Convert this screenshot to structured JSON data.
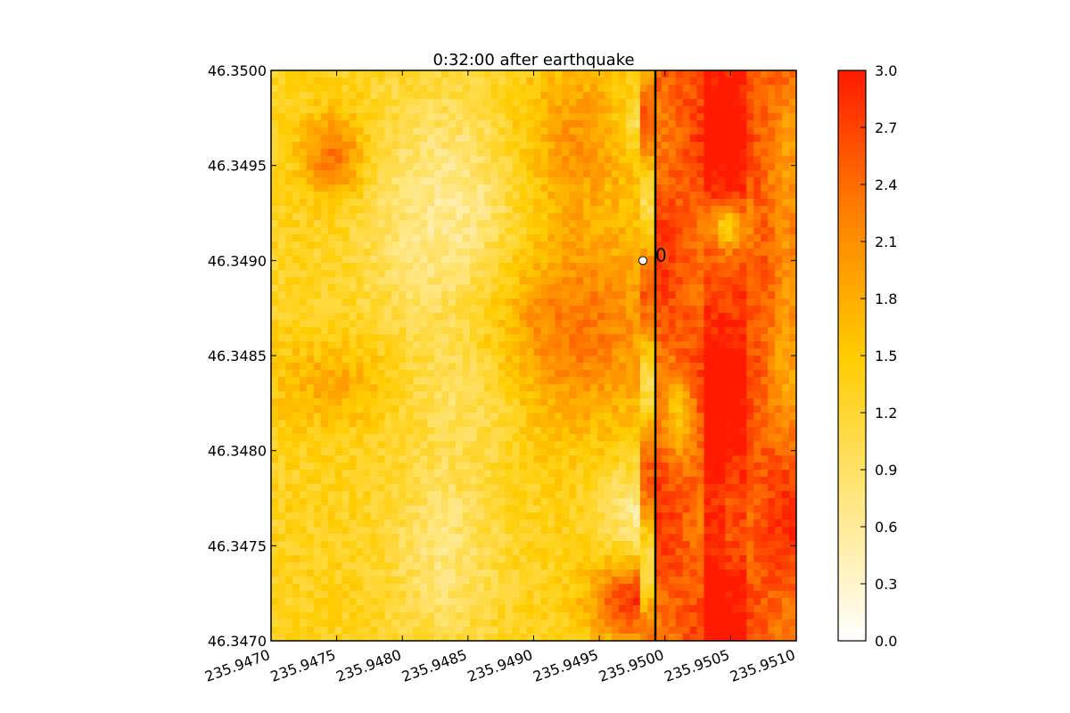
{
  "chart_data": {
    "type": "heatmap",
    "title": "0:32:00 after earthquake",
    "xlabel": "",
    "ylabel": "",
    "xlim": [
      235.947,
      235.951
    ],
    "ylim": [
      46.347,
      46.35
    ],
    "x_ticks": [
      "235.9470",
      "235.9475",
      "235.9480",
      "235.9485",
      "235.9490",
      "235.9495",
      "235.9500",
      "235.9505",
      "235.9510"
    ],
    "y_ticks": [
      "46.3470",
      "46.3475",
      "46.3480",
      "46.3485",
      "46.3490",
      "46.3495",
      "46.3500"
    ],
    "colorbar": {
      "min": 0.0,
      "max": 3.0,
      "ticks": [
        "0.0",
        "0.3",
        "0.6",
        "0.9",
        "1.2",
        "1.5",
        "1.8",
        "2.1",
        "2.4",
        "2.7",
        "3.0"
      ],
      "colors": [
        "#ffffff",
        "#ffe680",
        "#ffcc00",
        "#ff8000",
        "#ff1a00"
      ]
    },
    "vertical_line": {
      "x": 235.9499
    },
    "gauge": {
      "label": "0",
      "x": 235.9499,
      "y": 46.349
    },
    "grid": false
  }
}
